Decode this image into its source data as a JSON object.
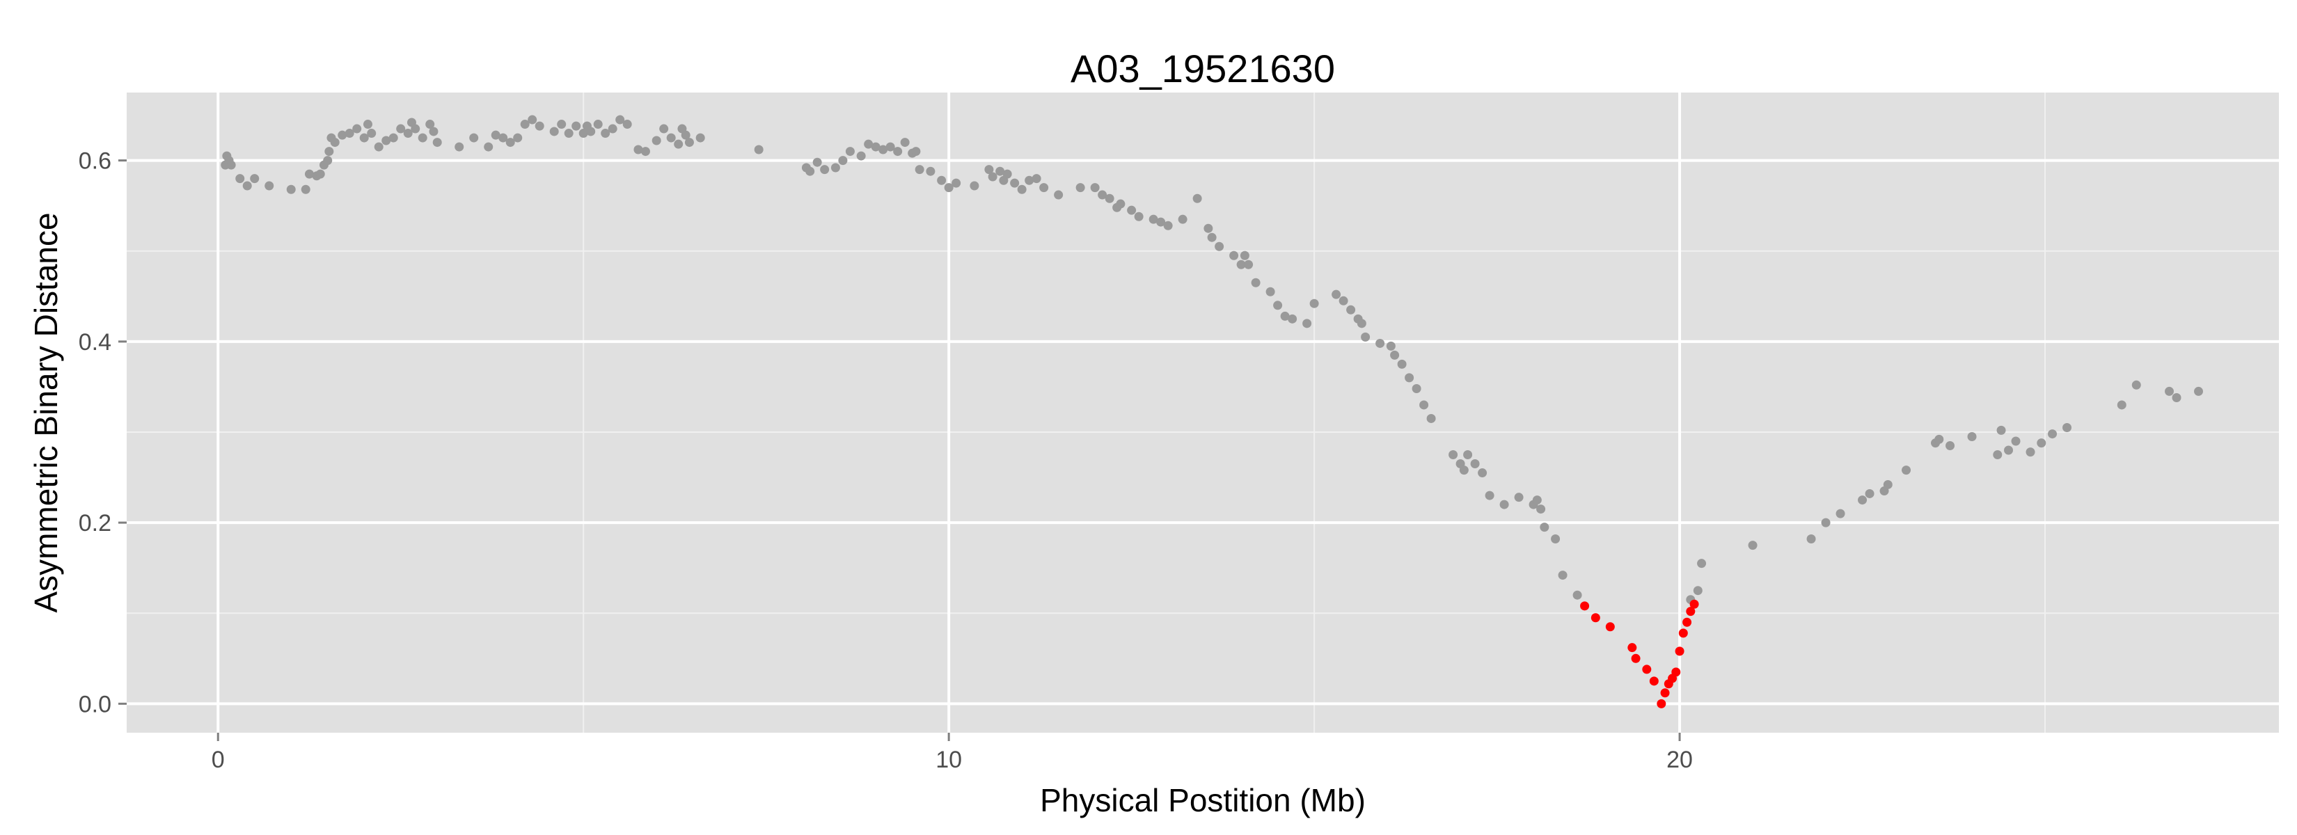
{
  "chart_data": {
    "type": "scatter",
    "title": "A03_19521630",
    "xlabel": "Physical Postition (Mb)",
    "ylabel": "Asymmetric Binary Distance",
    "xlim": [
      -1.25,
      28.2
    ],
    "ylim": [
      -0.032,
      0.675
    ],
    "x_ticks": [
      0,
      10,
      20
    ],
    "x_tick_labels": [
      "0",
      "10",
      "20"
    ],
    "y_ticks": [
      0.0,
      0.2,
      0.4,
      0.6
    ],
    "y_tick_labels": [
      "0.0",
      "0.2",
      "0.4",
      "0.6"
    ],
    "grid": true,
    "background_color": "#e0e0e0",
    "grid_color": "#ffffff",
    "series": [
      {
        "color": "#999999",
        "points": [
          [
            0.1,
            0.595
          ],
          [
            0.12,
            0.605
          ],
          [
            0.15,
            0.6
          ],
          [
            0.18,
            0.595
          ],
          [
            0.3,
            0.58
          ],
          [
            0.4,
            0.572
          ],
          [
            0.5,
            0.58
          ],
          [
            0.7,
            0.572
          ],
          [
            1.0,
            0.568
          ],
          [
            1.2,
            0.568
          ],
          [
            1.25,
            0.585
          ],
          [
            1.35,
            0.583
          ],
          [
            1.4,
            0.585
          ],
          [
            1.45,
            0.595
          ],
          [
            1.5,
            0.6
          ],
          [
            1.52,
            0.61
          ],
          [
            1.55,
            0.625
          ],
          [
            1.6,
            0.62
          ],
          [
            1.7,
            0.628
          ],
          [
            1.8,
            0.63
          ],
          [
            1.9,
            0.635
          ],
          [
            2.0,
            0.625
          ],
          [
            2.05,
            0.64
          ],
          [
            2.1,
            0.63
          ],
          [
            2.2,
            0.615
          ],
          [
            2.3,
            0.622
          ],
          [
            2.4,
            0.625
          ],
          [
            2.5,
            0.635
          ],
          [
            2.6,
            0.63
          ],
          [
            2.65,
            0.642
          ],
          [
            2.7,
            0.635
          ],
          [
            2.8,
            0.625
          ],
          [
            2.9,
            0.64
          ],
          [
            2.95,
            0.632
          ],
          [
            3.0,
            0.62
          ],
          [
            3.3,
            0.615
          ],
          [
            3.5,
            0.625
          ],
          [
            3.7,
            0.615
          ],
          [
            3.8,
            0.628
          ],
          [
            3.9,
            0.625
          ],
          [
            4.0,
            0.62
          ],
          [
            4.1,
            0.625
          ],
          [
            4.2,
            0.64
          ],
          [
            4.3,
            0.645
          ],
          [
            4.4,
            0.638
          ],
          [
            4.6,
            0.632
          ],
          [
            4.7,
            0.64
          ],
          [
            4.8,
            0.63
          ],
          [
            4.9,
            0.638
          ],
          [
            5.0,
            0.63
          ],
          [
            5.05,
            0.638
          ],
          [
            5.1,
            0.632
          ],
          [
            5.2,
            0.64
          ],
          [
            5.3,
            0.63
          ],
          [
            5.4,
            0.635
          ],
          [
            5.5,
            0.645
          ],
          [
            5.6,
            0.64
          ],
          [
            5.75,
            0.612
          ],
          [
            5.85,
            0.61
          ],
          [
            6.0,
            0.622
          ],
          [
            6.1,
            0.635
          ],
          [
            6.2,
            0.625
          ],
          [
            6.3,
            0.618
          ],
          [
            6.35,
            0.635
          ],
          [
            6.4,
            0.628
          ],
          [
            6.45,
            0.62
          ],
          [
            6.6,
            0.625
          ],
          [
            7.4,
            0.612
          ],
          [
            8.05,
            0.592
          ],
          [
            8.1,
            0.588
          ],
          [
            8.2,
            0.598
          ],
          [
            8.3,
            0.59
          ],
          [
            8.45,
            0.592
          ],
          [
            8.55,
            0.6
          ],
          [
            8.65,
            0.61
          ],
          [
            8.8,
            0.605
          ],
          [
            8.9,
            0.618
          ],
          [
            9.0,
            0.615
          ],
          [
            9.1,
            0.612
          ],
          [
            9.2,
            0.615
          ],
          [
            9.3,
            0.61
          ],
          [
            9.4,
            0.62
          ],
          [
            9.5,
            0.608
          ],
          [
            9.55,
            0.61
          ],
          [
            9.6,
            0.59
          ],
          [
            9.75,
            0.588
          ],
          [
            9.9,
            0.578
          ],
          [
            10.0,
            0.57
          ],
          [
            10.1,
            0.575
          ],
          [
            10.35,
            0.572
          ],
          [
            10.55,
            0.59
          ],
          [
            10.6,
            0.582
          ],
          [
            10.7,
            0.588
          ],
          [
            10.75,
            0.578
          ],
          [
            10.8,
            0.585
          ],
          [
            10.9,
            0.575
          ],
          [
            11.0,
            0.568
          ],
          [
            11.1,
            0.578
          ],
          [
            11.2,
            0.58
          ],
          [
            11.3,
            0.57
          ],
          [
            11.5,
            0.562
          ],
          [
            11.8,
            0.57
          ],
          [
            12.0,
            0.57
          ],
          [
            12.1,
            0.562
          ],
          [
            12.2,
            0.558
          ],
          [
            12.3,
            0.548
          ],
          [
            12.35,
            0.552
          ],
          [
            12.5,
            0.545
          ],
          [
            12.6,
            0.538
          ],
          [
            12.8,
            0.535
          ],
          [
            12.9,
            0.532
          ],
          [
            13.0,
            0.528
          ],
          [
            13.2,
            0.535
          ],
          [
            13.4,
            0.558
          ],
          [
            13.55,
            0.525
          ],
          [
            13.6,
            0.515
          ],
          [
            13.7,
            0.505
          ],
          [
            13.9,
            0.495
          ],
          [
            14.0,
            0.485
          ],
          [
            14.05,
            0.495
          ],
          [
            14.1,
            0.485
          ],
          [
            14.2,
            0.465
          ],
          [
            14.4,
            0.455
          ],
          [
            14.5,
            0.44
          ],
          [
            14.6,
            0.428
          ],
          [
            14.7,
            0.425
          ],
          [
            14.9,
            0.42
          ],
          [
            15.0,
            0.442
          ],
          [
            15.3,
            0.452
          ],
          [
            15.4,
            0.445
          ],
          [
            15.5,
            0.435
          ],
          [
            15.6,
            0.425
          ],
          [
            15.65,
            0.42
          ],
          [
            15.7,
            0.405
          ],
          [
            15.9,
            0.398
          ],
          [
            16.05,
            0.395
          ],
          [
            16.1,
            0.385
          ],
          [
            16.2,
            0.375
          ],
          [
            16.3,
            0.36
          ],
          [
            16.4,
            0.348
          ],
          [
            16.5,
            0.33
          ],
          [
            16.6,
            0.315
          ],
          [
            16.9,
            0.275
          ],
          [
            17.0,
            0.265
          ],
          [
            17.05,
            0.258
          ],
          [
            17.1,
            0.275
          ],
          [
            17.2,
            0.265
          ],
          [
            17.3,
            0.255
          ],
          [
            17.4,
            0.23
          ],
          [
            17.6,
            0.22
          ],
          [
            17.8,
            0.228
          ],
          [
            18.0,
            0.22
          ],
          [
            18.05,
            0.225
          ],
          [
            18.1,
            0.215
          ],
          [
            18.15,
            0.195
          ],
          [
            18.3,
            0.182
          ],
          [
            18.4,
            0.142
          ],
          [
            18.6,
            0.12
          ],
          [
            21.0,
            0.175
          ],
          [
            21.8,
            0.182
          ],
          [
            22.0,
            0.2
          ],
          [
            22.2,
            0.21
          ],
          [
            22.5,
            0.225
          ],
          [
            22.6,
            0.232
          ],
          [
            22.8,
            0.235
          ],
          [
            22.85,
            0.242
          ],
          [
            23.1,
            0.258
          ],
          [
            23.5,
            0.288
          ],
          [
            23.55,
            0.292
          ],
          [
            23.7,
            0.285
          ],
          [
            24.0,
            0.295
          ],
          [
            24.35,
            0.275
          ],
          [
            24.4,
            0.302
          ],
          [
            24.5,
            0.28
          ],
          [
            24.6,
            0.29
          ],
          [
            24.8,
            0.278
          ],
          [
            24.95,
            0.288
          ],
          [
            25.1,
            0.298
          ],
          [
            25.3,
            0.305
          ],
          [
            26.05,
            0.33
          ],
          [
            26.25,
            0.352
          ],
          [
            26.7,
            0.345
          ],
          [
            26.8,
            0.338
          ],
          [
            27.1,
            0.345
          ],
          [
            20.15,
            0.115
          ],
          [
            20.25,
            0.125
          ],
          [
            20.3,
            0.155
          ]
        ]
      },
      {
        "color": "#ff0000",
        "points": [
          [
            18.7,
            0.108
          ],
          [
            18.85,
            0.095
          ],
          [
            19.05,
            0.085
          ],
          [
            19.35,
            0.062
          ],
          [
            19.4,
            0.05
          ],
          [
            19.55,
            0.038
          ],
          [
            19.65,
            0.025
          ],
          [
            19.75,
            0.0
          ],
          [
            19.8,
            0.012
          ],
          [
            19.85,
            0.022
          ],
          [
            19.95,
            0.035
          ],
          [
            20.0,
            0.058
          ],
          [
            20.05,
            0.078
          ],
          [
            20.1,
            0.09
          ],
          [
            20.15,
            0.102
          ],
          [
            20.2,
            0.11
          ],
          [
            19.9,
            0.028
          ]
        ]
      }
    ]
  }
}
